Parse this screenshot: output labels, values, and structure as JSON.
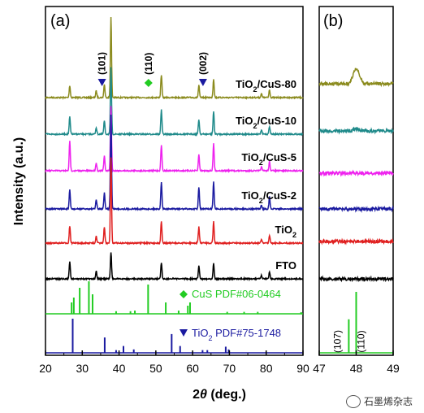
{
  "figure": {
    "ylabel": "Intensity (a.u.)",
    "xlabel_prefix": "2",
    "xlabel_theta": "θ",
    "xlabel_suffix": " (deg.)",
    "watermark": "石墨烯杂志"
  },
  "chart_data": [
    {
      "type": "line",
      "panel_label": "(a)",
      "xlabel": "2θ (deg.)",
      "ylabel": "Intensity (a.u.)",
      "xlim": [
        20,
        90
      ],
      "xticks": [
        20,
        30,
        40,
        50,
        60,
        70,
        80,
        90
      ],
      "series": [
        {
          "name": "TiO₂/CuS-80",
          "color": "#8b8b1e",
          "peaks": [
            [
              26.6,
              0.45
            ],
            [
              33.8,
              0.25
            ],
            [
              36.0,
              0.5
            ],
            [
              37.8,
              3.0
            ],
            [
              51.5,
              0.85
            ],
            [
              61.7,
              0.45
            ],
            [
              65.7,
              0.7
            ],
            [
              78.7,
              0.15
            ],
            [
              80.9,
              0.3
            ]
          ]
        },
        {
          "name": "TiO₂/CuS-10",
          "color": "#1f8a8a",
          "peaks": [
            [
              26.6,
              0.65
            ],
            [
              33.8,
              0.25
            ],
            [
              36.0,
              0.5
            ],
            [
              37.8,
              2.5
            ],
            [
              51.5,
              0.9
            ],
            [
              61.7,
              0.55
            ],
            [
              65.7,
              0.85
            ],
            [
              78.7,
              0.15
            ],
            [
              80.9,
              0.3
            ]
          ]
        },
        {
          "name": "TiO₂/CuS-5",
          "color": "#ee22ee",
          "peaks": [
            [
              26.6,
              1.1
            ],
            [
              33.8,
              0.3
            ],
            [
              36.0,
              0.55
            ],
            [
              37.8,
              2.4
            ],
            [
              51.5,
              0.95
            ],
            [
              61.7,
              0.6
            ],
            [
              65.7,
              1.0
            ],
            [
              78.7,
              0.15
            ],
            [
              80.9,
              0.35
            ]
          ]
        },
        {
          "name": "TiO₂/CuS-2",
          "color": "#1a1aa0",
          "peaks": [
            [
              26.6,
              0.7
            ],
            [
              33.8,
              0.35
            ],
            [
              36.0,
              0.6
            ],
            [
              37.8,
              3.5
            ],
            [
              51.5,
              1.0
            ],
            [
              61.7,
              0.8
            ],
            [
              65.7,
              1.0
            ],
            [
              78.7,
              0.15
            ],
            [
              80.9,
              0.45
            ]
          ]
        },
        {
          "name": "TiO₂",
          "color": "#e02020",
          "peaks": [
            [
              26.6,
              0.65
            ],
            [
              33.8,
              0.25
            ],
            [
              36.0,
              0.6
            ],
            [
              37.8,
              3.2
            ],
            [
              51.5,
              0.8
            ],
            [
              61.7,
              0.6
            ],
            [
              65.7,
              0.8
            ],
            [
              78.7,
              0.15
            ],
            [
              80.9,
              0.3
            ]
          ]
        },
        {
          "name": "FTO",
          "color": "#000000",
          "peaks": [
            [
              26.6,
              0.65
            ],
            [
              33.8,
              0.3
            ],
            [
              37.8,
              1.0
            ],
            [
              51.5,
              0.6
            ],
            [
              61.7,
              0.5
            ],
            [
              65.7,
              0.6
            ],
            [
              78.7,
              0.12
            ],
            [
              80.9,
              0.25
            ]
          ]
        }
      ],
      "series_labels": [
        {
          "main": "TiO",
          "sub": "2",
          "rest": "/CuS-80"
        },
        {
          "main": "TiO",
          "sub": "2",
          "rest": "/CuS-10"
        },
        {
          "main": "TiO",
          "sub": "2",
          "rest": "/CuS-5"
        },
        {
          "main": "TiO",
          "sub": "2",
          "rest": "/CuS-2"
        },
        {
          "main": "TiO",
          "sub": "2",
          "rest": ""
        },
        {
          "main": "FTO",
          "sub": "",
          "rest": ""
        }
      ],
      "annotations": [
        {
          "text": "(101)",
          "x": 37.8,
          "marker": "triangle-down",
          "color": "#1a1aa0"
        },
        {
          "text": "(110)",
          "x": 48.0,
          "marker": "diamond",
          "color": "#22cc22"
        },
        {
          "text": "(002)",
          "x": 62.6,
          "marker": "triangle-down",
          "color": "#1a1aa0"
        }
      ],
      "reference_patterns": [
        {
          "label": "CuS PDF#06-0464",
          "label_prefix": "",
          "label_sub": "",
          "label_rest": "CuS PDF#06-0464",
          "marker": "diamond",
          "color": "#22cc22",
          "lines": [
            [
              27.1,
              0.35
            ],
            [
              27.7,
              0.5
            ],
            [
              29.3,
              0.8
            ],
            [
              31.8,
              1.0
            ],
            [
              32.8,
              0.6
            ],
            [
              39.2,
              0.08
            ],
            [
              43.1,
              0.08
            ],
            [
              44.3,
              0.1
            ],
            [
              47.9,
              0.9
            ],
            [
              52.7,
              0.35
            ],
            [
              56.2,
              0.1
            ],
            [
              58.7,
              0.25
            ],
            [
              59.3,
              0.35
            ],
            [
              69.4,
              0.06
            ],
            [
              74.0,
              0.06
            ],
            [
              77.7,
              0.06
            ],
            [
              89.5,
              0.05
            ]
          ]
        },
        {
          "label": "TiO₂ PDF#75-1748",
          "label_prefix": "TiO",
          "label_sub": "2",
          "label_rest": " PDF#75-1748",
          "marker": "triangle-down",
          "color": "#1a1aa0",
          "lines": [
            [
              27.4,
              1.0
            ],
            [
              36.1,
              0.45
            ],
            [
              39.2,
              0.08
            ],
            [
              41.2,
              0.2
            ],
            [
              44.0,
              0.1
            ],
            [
              54.3,
              0.55
            ],
            [
              56.6,
              0.2
            ],
            [
              62.7,
              0.08
            ],
            [
              64.0,
              0.08
            ],
            [
              69.0,
              0.18
            ],
            [
              69.8,
              0.1
            ]
          ]
        }
      ]
    },
    {
      "type": "line",
      "panel_label": "(b)",
      "xlim": [
        47,
        49
      ],
      "xticks": [
        47,
        48,
        49
      ],
      "series_colors": [
        "#8b8b1e",
        "#1f8a8a",
        "#ee22ee",
        "#1a1aa0",
        "#e02020",
        "#000000"
      ],
      "series_peak_at_48": [
        1.0,
        0.12,
        0,
        0,
        0,
        0
      ],
      "reference_lines": [
        {
          "text": "(107)",
          "x": 47.8,
          "height": 0.55,
          "color": "#22cc22"
        },
        {
          "text": "(110)",
          "x": 48.0,
          "height": 1.0,
          "color": "#22cc22"
        }
      ]
    }
  ]
}
